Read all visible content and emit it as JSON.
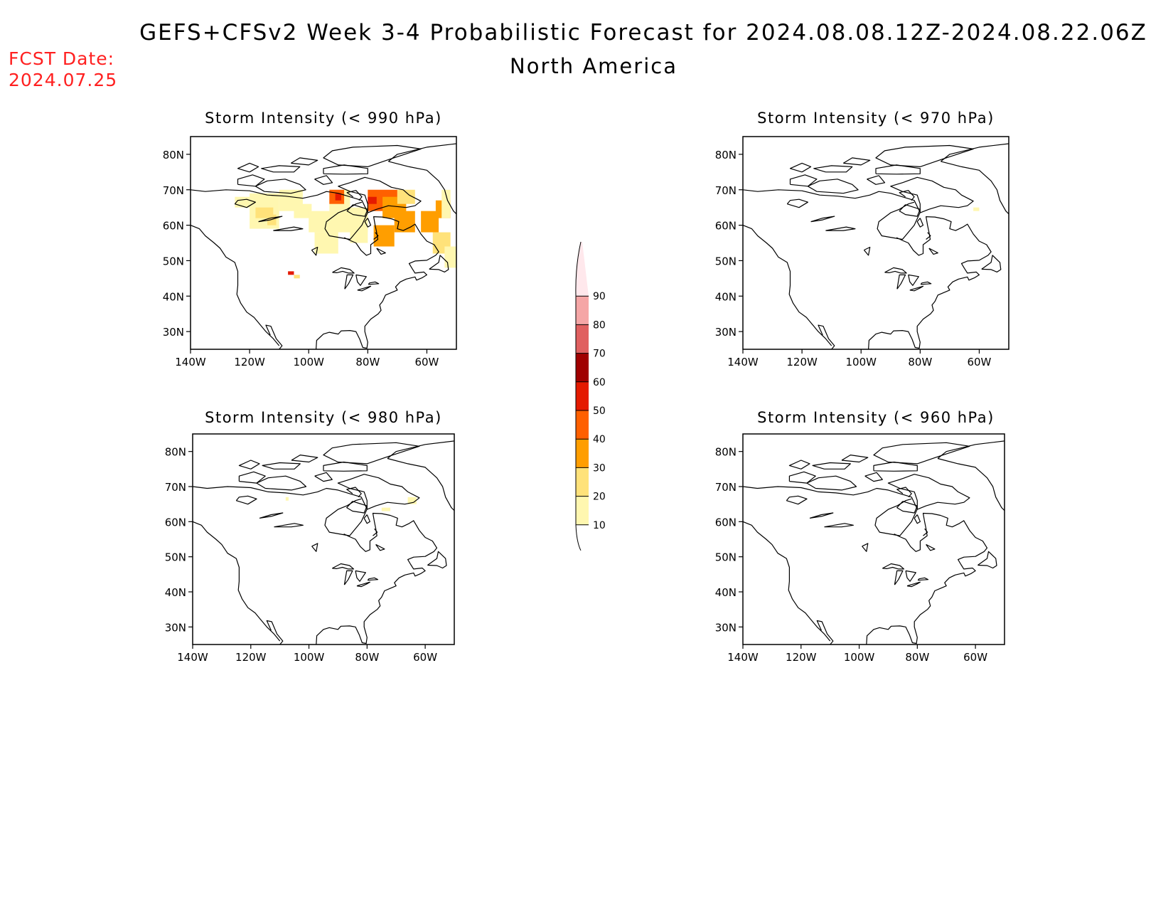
{
  "header": {
    "title": "GEFS+CFSv2 Week 3-4 Probabilistic Forecast for 2024.08.08.12Z-2024.08.22.06Z",
    "subtitle": "North America",
    "fcst_label": "FCST Date:",
    "fcst_value": "2024.07.25"
  },
  "colors": {
    "fcst_text": "#ff2020",
    "coast": "#000000",
    "scale": [
      "#fff7b0",
      "#ffe27a",
      "#ff9e00",
      "#ff6000",
      "#e41a00",
      "#a00000",
      "#e06060",
      "#f5a6a6",
      "#ffe8ec"
    ]
  },
  "chart_data": {
    "type": "heatmap",
    "x_tick_labels": [
      "140W",
      "120W",
      "100W",
      "80W",
      "60W"
    ],
    "y_tick_labels": [
      "80N",
      "70N",
      "60N",
      "50N",
      "40N",
      "30N"
    ],
    "xlim": [
      -140,
      -50
    ],
    "ylim": [
      25,
      85
    ],
    "colorbar": {
      "tick_labels": [
        "10",
        "20",
        "30",
        "40",
        "50",
        "60",
        "70",
        "80",
        "90"
      ]
    },
    "panels": [
      {
        "id": "p990",
        "title": "Storm Intensity (< 990 hPa)",
        "cells": [
          {
            "lon": -125,
            "lat": 65,
            "w": 5,
            "h": 3,
            "v": 10
          },
          {
            "lon": -120,
            "lat": 59,
            "w": 10,
            "h": 10,
            "v": 15
          },
          {
            "lon": -110,
            "lat": 64,
            "w": 8,
            "h": 6,
            "v": 12
          },
          {
            "lon": -118,
            "lat": 62,
            "w": 6,
            "h": 3,
            "v": 22
          },
          {
            "lon": -114,
            "lat": 60,
            "w": 3,
            "h": 3,
            "v": 25
          },
          {
            "lon": -105,
            "lat": 62,
            "w": 6,
            "h": 4,
            "v": 12
          },
          {
            "lon": -100,
            "lat": 58,
            "w": 20,
            "h": 6,
            "v": 10
          },
          {
            "lon": -98,
            "lat": 52,
            "w": 8,
            "h": 6,
            "v": 10
          },
          {
            "lon": -93,
            "lat": 64,
            "w": 7,
            "h": 6,
            "v": 18
          },
          {
            "lon": -93,
            "lat": 66,
            "w": 5,
            "h": 4,
            "v": 45
          },
          {
            "lon": -91,
            "lat": 67,
            "w": 2,
            "h": 2,
            "v": 55
          },
          {
            "lon": -87,
            "lat": 62,
            "w": 7,
            "h": 3,
            "v": 14
          },
          {
            "lon": -80,
            "lat": 64,
            "w": 10,
            "h": 6,
            "v": 45
          },
          {
            "lon": -80,
            "lat": 66,
            "w": 3,
            "h": 2,
            "v": 55
          },
          {
            "lon": -75,
            "lat": 62,
            "w": 8,
            "h": 6,
            "v": 35
          },
          {
            "lon": -78,
            "lat": 54,
            "w": 7,
            "h": 6,
            "v": 32
          },
          {
            "lon": -71,
            "lat": 58,
            "w": 7,
            "h": 6,
            "v": 38
          },
          {
            "lon": -70,
            "lat": 66,
            "w": 6,
            "h": 4,
            "v": 20
          },
          {
            "lon": -62,
            "lat": 58,
            "w": 6,
            "h": 6,
            "v": 35
          },
          {
            "lon": -57,
            "lat": 62,
            "w": 5,
            "h": 5,
            "v": 32
          },
          {
            "lon": -58,
            "lat": 52,
            "w": 6,
            "h": 6,
            "v": 22
          },
          {
            "lon": -55,
            "lat": 62,
            "w": 3,
            "h": 8,
            "v": 14
          },
          {
            "lon": -54,
            "lat": 48,
            "w": 4,
            "h": 6,
            "v": 12
          },
          {
            "lon": -86,
            "lat": 55,
            "w": 6,
            "h": 5,
            "v": 10
          },
          {
            "lon": -107,
            "lat": 46,
            "w": 2,
            "h": 1,
            "v": 55
          },
          {
            "lon": -105,
            "lat": 45,
            "w": 2,
            "h": 1,
            "v": 22
          }
        ]
      },
      {
        "id": "p970",
        "title": "Storm Intensity (< 970 hPa)",
        "cells": [
          {
            "lon": -62,
            "lat": 64,
            "w": 2,
            "h": 1,
            "v": 10
          }
        ]
      },
      {
        "id": "p980",
        "title": "Storm Intensity (< 980 hPa)",
        "cells": [
          {
            "lon": -108,
            "lat": 66,
            "w": 1,
            "h": 1,
            "v": 10
          },
          {
            "lon": -75,
            "lat": 63,
            "w": 3,
            "h": 1,
            "v": 12
          },
          {
            "lon": -66,
            "lat": 65,
            "w": 3,
            "h": 2,
            "v": 12
          }
        ]
      },
      {
        "id": "p960",
        "title": "Storm Intensity (< 960 hPa)",
        "cells": []
      }
    ]
  }
}
